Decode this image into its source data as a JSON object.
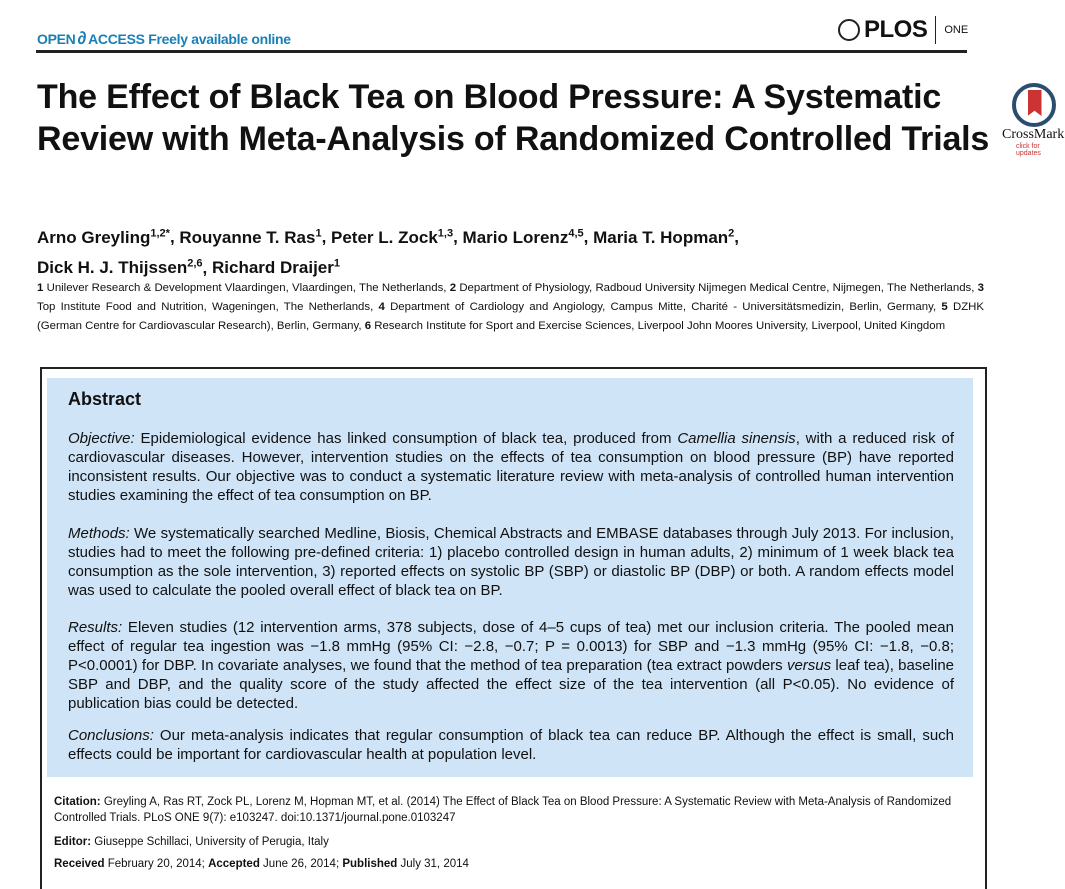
{
  "header": {
    "open_access_1": "OPEN",
    "open_access_2": "ACCESS",
    "tagline": "Freely available online",
    "journal": "PLOS",
    "journal_sub": "ONE"
  },
  "crossmark": {
    "label": "CrossMark",
    "sub": "click for updates"
  },
  "title": "The Effect of Black Tea on Blood Pressure: A Systematic Review with Meta-Analysis of Randomized Controlled Trials",
  "authors": [
    {
      "name": "Arno Greyling",
      "sup": "1,2*"
    },
    {
      "name": "Rouyanne T. Ras",
      "sup": "1"
    },
    {
      "name": "Peter L. Zock",
      "sup": "1,3"
    },
    {
      "name": "Mario Lorenz",
      "sup": "4,5"
    },
    {
      "name": "Maria T. Hopman",
      "sup": "2"
    },
    {
      "name": "Dick H. J. Thijssen",
      "sup": "2,6"
    },
    {
      "name": "Richard Draijer",
      "sup": "1"
    }
  ],
  "affiliations": [
    {
      "num": "1",
      "text": "Unilever Research & Development Vlaardingen, Vlaardingen, The Netherlands,"
    },
    {
      "num": "2",
      "text": "Department of Physiology, Radboud University Nijmegen Medical Centre, Nijmegen, The Netherlands,"
    },
    {
      "num": "3",
      "text": "Top Institute Food and Nutrition, Wageningen, The Netherlands,"
    },
    {
      "num": "4",
      "text": "Department of Cardiology and Angiology, Campus Mitte, Charité - Universitätsmedizin, Berlin, Germany,"
    },
    {
      "num": "5",
      "text": "DZHK (German Centre for Cardiovascular Research), Berlin, Germany,"
    },
    {
      "num": "6",
      "text": "Research Institute for Sport and Exercise Sciences, Liverpool John Moores University, Liverpool, United Kingdom"
    }
  ],
  "abstract": {
    "heading": "Abstract",
    "objective": {
      "label": "Objective:",
      "t1": " Epidemiological evidence has linked consumption of black tea, produced from ",
      "em": "Camellia sinensis",
      "t2": ", with a reduced risk of cardiovascular diseases. However, intervention studies on the effects of tea consumption on blood pressure (BP) have reported inconsistent results. Our objective was to conduct a systematic literature review with meta-analysis of controlled human intervention studies examining the effect of tea consumption on BP."
    },
    "methods": {
      "label": "Methods:",
      "t1": " We systematically searched Medline, Biosis, Chemical Abstracts and EMBASE databases through July 2013. For inclusion, studies had to meet the following pre-defined criteria: 1) placebo controlled design in human adults, 2) minimum of 1 week black tea consumption as the sole intervention, 3) reported effects on systolic BP (SBP) or diastolic BP (DBP) or both. A random effects model was used to calculate the pooled overall effect of black tea on BP."
    },
    "results": {
      "label": "Results:",
      "t1": " Eleven studies (12 intervention arms, 378 subjects, dose of 4–5 cups of tea) met our inclusion criteria. The pooled mean effect of regular tea ingestion was −1.8 mmHg (95% CI: −2.8, −0.7; P = 0.0013) for SBP and −1.3 mmHg (95% CI: −1.8, −0.8; P<0.0001) for DBP. In covariate analyses, we found that the method of tea preparation (tea extract powders ",
      "em": "versus",
      "t2": " leaf tea), baseline SBP and DBP, and the quality score of the study affected the effect size of the tea intervention (all P<0.05). No evidence of publication bias could be detected."
    },
    "conclusions": {
      "label": "Conclusions:",
      "t1": " Our meta-analysis indicates that regular consumption of black tea can reduce BP. Although the effect is small, such effects could be important for cardiovascular health at population level."
    }
  },
  "citation": {
    "label": "Citation:",
    "text": " Greyling A, Ras RT, Zock PL, Lorenz M, Hopman MT, et al. (2014) The Effect of Black Tea on Blood Pressure: A Systematic Review with Meta-Analysis of Randomized Controlled Trials. PLoS ONE 9(7): e103247. doi:10.1371/journal.pone.0103247"
  },
  "editor": {
    "label": "Editor:",
    "text": " Giuseppe Schillaci, University of Perugia, Italy"
  },
  "dates": {
    "received_label": "Received",
    "received": " February 20, 2014; ",
    "accepted_label": "Accepted",
    "accepted": " June 26, 2014; ",
    "published_label": "Published",
    "published": " July 31, 2014"
  }
}
